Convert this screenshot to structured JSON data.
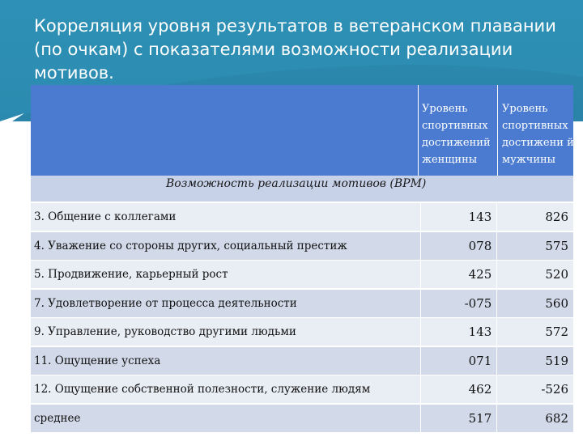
{
  "slide": {
    "title": "Корреляция уровня результатов в ветеранском плавании (по очкам) с показателями возможности реализации мотивов."
  },
  "table": {
    "headers": {
      "women": "Уровень спортивных достижений женщины",
      "men": "Уровень спортивных достижени й мужчины",
      "row_label": "Возможность реализации мотивов (ВРМ)"
    },
    "rows": [
      {
        "label": "3. Общение с коллегами",
        "women": "143",
        "men": "826"
      },
      {
        "label": "4. Уважение со стороны других, социальный престиж",
        "women": "078",
        "men": "575"
      },
      {
        "label": "5. Продвижение, карьерный рост",
        "women": "425",
        "men": "520"
      },
      {
        "label": "7. Удовлетворение от процесса деятельности",
        "women": "-075",
        "men": "560"
      },
      {
        "label": "9. Управление, руководство другими людьми",
        "women": "143",
        "men": "572"
      },
      {
        "label": "11. Ощущение успеха",
        "women": "071",
        "men": "519"
      },
      {
        "label": "12. Ощущение собственной полезности, служение людям",
        "women": "462",
        "men": "-526"
      },
      {
        "label": "среднее",
        "women": "517",
        "men": "682"
      }
    ]
  },
  "colors": {
    "header_band": "#2d8db3",
    "table_header": "#4a7bd0",
    "row_light": "#e9edf4",
    "row_dark": "#d2daea"
  }
}
